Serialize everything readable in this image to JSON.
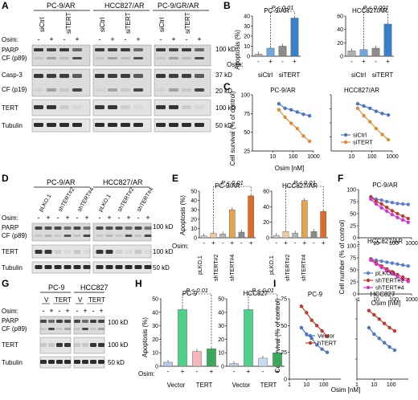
{
  "panel_letters": [
    "A",
    "B",
    "C",
    "D",
    "E",
    "F",
    "G",
    "H",
    "I"
  ],
  "panelA": {
    "cell_lines": [
      "PC-9/AR",
      "HCC827/AR",
      "PC-9/GR/AR"
    ],
    "osim_label": "Osim:",
    "osim_signs": [
      "-",
      "+",
      "-",
      "+",
      "-",
      "+",
      "-",
      "+",
      "-",
      "+",
      "-",
      "+"
    ],
    "treatments": [
      "siCtrl",
      "siTERT",
      "siCtrl",
      "siTERT",
      "siCtrl",
      "siTERT"
    ],
    "row_labels": [
      "PARP",
      "CF (p89)",
      "Casp-3",
      "CF (p19)",
      "TERT",
      "Tubulin"
    ],
    "mw_labels": [
      "100 kD",
      "37 kD",
      "20 kD",
      "100 kD",
      "50 kD"
    ]
  },
  "panelB": {
    "ylabel": "Apoptosis (%)",
    "osim_label": "Osim:",
    "pvalue": "P < 0.01",
    "pvalue2": "P < 0.001",
    "treatments": [
      "siCtrl",
      "siTERT"
    ]
  },
  "panelC": {
    "ylabel": "Cell survival (% of control)",
    "xlabel": "Osim [nM]",
    "legend": [
      "siCtrl",
      "siTERT"
    ]
  },
  "panelD": {
    "cell_lines": [
      "PC-9/AR",
      "HCC827/AR"
    ],
    "osim_label": "Osim:",
    "treatments": [
      "pLKO.1",
      "shTERT#2",
      "shTERT#4",
      "pLKO.1",
      "shTERT#2",
      "shTERT#4"
    ],
    "row_labels": [
      "PARP",
      "CF (p89)",
      "TERT",
      "Tubulin"
    ],
    "mw_labels": [
      "100 kD",
      "100 kD",
      "50 kD"
    ]
  },
  "panelE": {
    "ylabel": "Apoptosis (%)",
    "osim_label": "Osim:",
    "pvalue": "P < 0.01",
    "treatments": [
      "pLKO.1",
      "shTERT#2",
      "shTERT#4"
    ]
  },
  "panelF": {
    "ylabel": "Cell number (% of control)",
    "xlabel": "Osim [nM]",
    "legend": [
      "pLKO.1",
      "shTERT#2",
      "shTERT#4"
    ]
  },
  "panelG": {
    "cell_lines": [
      "PC-9",
      "HCC827"
    ],
    "osim_label": "Osim:",
    "treatments": [
      "V",
      "TERT",
      "V",
      "TERT"
    ],
    "row_labels": [
      "PARP",
      "CF (p89)",
      "TERT",
      "Tubulin"
    ],
    "mw_labels": [
      "100 kD",
      "100 kD",
      "50 kD"
    ]
  },
  "panelH": {
    "ylabel": "Apoptosis (%)",
    "osim_label": "Osim:",
    "pvalue": "P < 0.01",
    "treatments": [
      "Vector",
      "TERT"
    ]
  },
  "panelI": {
    "ylabel": "Cell survival (% of control)",
    "xlabel": "Osim [nM]",
    "legend": [
      "Vector",
      "hTERT"
    ]
  },
  "chart_data": [
    {
      "id": "B-PC9",
      "type": "bar",
      "title": "PC-9/AR",
      "ylabel": "Apoptosis (%)",
      "ylim": [
        0,
        40
      ],
      "yticks": [
        "0",
        "10",
        "20",
        "30",
        "40"
      ],
      "categories": [
        "siCtrl -",
        "siCtrl +",
        "siTERT -",
        "siTERT +"
      ],
      "values": [
        2,
        8,
        10,
        38
      ],
      "colors": [
        "#b0b0b0",
        "#6ea8dc",
        "#8c8c8c",
        "#3a7fc9"
      ]
    },
    {
      "id": "B-HCC827",
      "type": "bar",
      "title": "HCC827/AR",
      "ylabel": "",
      "ylim": [
        0,
        60
      ],
      "yticks": [
        "0",
        "20",
        "40",
        "60"
      ],
      "categories": [
        "siCtrl -",
        "siCtrl +",
        "siTERT -",
        "siTERT +"
      ],
      "values": [
        8,
        10,
        12,
        48
      ],
      "colors": [
        "#b0b0b0",
        "#6ea8dc",
        "#8c8c8c",
        "#3a7fc9"
      ]
    },
    {
      "id": "C-PC9",
      "type": "line",
      "title": "PC-9/AR",
      "xscale": "log",
      "xlim": [
        1,
        1000
      ],
      "ylim": [
        25,
        100
      ],
      "xticks": [
        "10",
        "100",
        "1000"
      ],
      "yticks": [
        "25",
        "50",
        "75",
        "100"
      ],
      "series": [
        {
          "name": "siCtrl",
          "color": "#4a74c4",
          "x": [
            20,
            40,
            80,
            160,
            320,
            640
          ],
          "y": [
            88,
            82,
            80,
            77,
            74,
            72
          ]
        },
        {
          "name": "siTERT",
          "color": "#e08b3a",
          "x": [
            20,
            40,
            80,
            160,
            320,
            640
          ],
          "y": [
            80,
            70,
            62,
            55,
            45,
            38
          ]
        }
      ]
    },
    {
      "id": "C-HCC827",
      "type": "line",
      "title": "HCC827/AR",
      "xscale": "log",
      "xlim": [
        1,
        1000
      ],
      "ylim": [
        25,
        100
      ],
      "xticks": [
        "10",
        "100",
        "1000"
      ],
      "yticks": [],
      "series": [
        {
          "name": "siCtrl",
          "color": "#4a74c4",
          "x": [
            20,
            40,
            80,
            160,
            320,
            640
          ],
          "y": [
            88,
            85,
            82,
            78,
            75,
            73
          ]
        },
        {
          "name": "siTERT",
          "color": "#e08b3a",
          "x": [
            20,
            40,
            80,
            160,
            320,
            640
          ],
          "y": [
            82,
            72,
            64,
            55,
            47,
            40
          ]
        }
      ]
    },
    {
      "id": "E-PC9",
      "type": "bar",
      "title": "PC-9/AR",
      "ylabel": "Apoptosis (%)",
      "ylim": [
        0,
        50
      ],
      "yticks": [
        "0",
        "10",
        "20",
        "30",
        "40",
        "50"
      ],
      "categories": [
        "pLKO.1 -",
        "pLKO.1 +",
        "shTERT#2 -",
        "shTERT#2 +",
        "shTERT#4 -",
        "shTERT#4 +"
      ],
      "values": [
        2,
        5,
        4,
        30,
        6,
        45
      ],
      "colors": [
        "#cfcfcf",
        "#f2c9a0",
        "#b5b5b5",
        "#e8a34d",
        "#8a8a8a",
        "#e06a28"
      ]
    },
    {
      "id": "E-HCC827",
      "type": "bar",
      "title": "HCC827/AR",
      "ylabel": "",
      "ylim": [
        0,
        60
      ],
      "yticks": [
        "0",
        "20",
        "40",
        "60"
      ],
      "categories": [
        "pLKO.1 -",
        "pLKO.1 +",
        "shTERT#2 -",
        "shTERT#2 +",
        "shTERT#4 -",
        "shTERT#4 +"
      ],
      "values": [
        3,
        8,
        6,
        48,
        8,
        34
      ],
      "colors": [
        "#cfcfcf",
        "#f2c9a0",
        "#b5b5b5",
        "#e8a34d",
        "#8a8a8a",
        "#e06a28"
      ]
    },
    {
      "id": "F-PC9",
      "type": "line",
      "title": "PC-9/AR",
      "xscale": "log",
      "xlim": [
        1,
        1000
      ],
      "ylim": [
        0,
        100
      ],
      "xticks": [
        "1",
        "10",
        "100",
        "1000"
      ],
      "yticks": [
        "0",
        "25",
        "50",
        "75",
        "100"
      ],
      "series": [
        {
          "name": "pLKO.1",
          "color": "#5a7fd0",
          "x": [
            5,
            10,
            20,
            40,
            80,
            160,
            320,
            640
          ],
          "y": [
            85,
            80,
            78,
            75,
            73,
            71,
            70,
            69
          ]
        },
        {
          "name": "shTERT#2",
          "color": "#c0392b",
          "x": [
            5,
            10,
            20,
            40,
            80,
            160,
            320,
            640
          ],
          "y": [
            84,
            76,
            70,
            63,
            56,
            50,
            45,
            40
          ]
        },
        {
          "name": "shTERT#4",
          "color": "#d633d6",
          "x": [
            5,
            10,
            20,
            40,
            80,
            160,
            320,
            640
          ],
          "y": [
            80,
            70,
            62,
            55,
            48,
            42,
            37,
            32
          ]
        }
      ]
    },
    {
      "id": "F-HCC827",
      "type": "line",
      "title": "HCC827/AR",
      "xscale": "log",
      "xlim": [
        1,
        1000
      ],
      "ylim": [
        0,
        100
      ],
      "xticks": [
        "1",
        "10",
        "100",
        "1000"
      ],
      "yticks": [
        "0",
        "25",
        "50",
        "75",
        "100"
      ],
      "series": [
        {
          "name": "pLKO.1",
          "color": "#5a7fd0",
          "x": [
            5,
            10,
            20,
            40,
            80,
            160,
            320,
            640
          ],
          "y": [
            73,
            70,
            68,
            66,
            64,
            62,
            60,
            58
          ]
        },
        {
          "name": "shTERT#2",
          "color": "#c0392b",
          "x": [
            5,
            10,
            20,
            40,
            80,
            160,
            320,
            640
          ],
          "y": [
            72,
            65,
            58,
            52,
            46,
            40,
            35,
            30
          ]
        },
        {
          "name": "shTERT#4",
          "color": "#d633d6",
          "x": [
            5,
            10,
            20,
            40,
            80,
            160,
            320,
            640
          ],
          "y": [
            70,
            62,
            55,
            48,
            42,
            36,
            30,
            26
          ]
        }
      ]
    },
    {
      "id": "H-PC9",
      "type": "bar",
      "title": "PC-9",
      "ylabel": "Apoptosis (%)",
      "ylim": [
        0,
        50
      ],
      "yticks": [
        "0",
        "10",
        "20",
        "30",
        "40",
        "50"
      ],
      "categories": [
        "Vector -",
        "Vector +",
        "TERT -",
        "TERT +"
      ],
      "values": [
        3,
        42,
        11,
        13
      ],
      "colors": [
        "#b8c8e8",
        "#4fd18b",
        "#f4b6b6",
        "#3aa95c"
      ]
    },
    {
      "id": "H-HCC827",
      "type": "bar",
      "title": "HCC827",
      "ylabel": "",
      "ylim": [
        0,
        50
      ],
      "yticks": [
        "0",
        "10",
        "20",
        "30",
        "40",
        "50"
      ],
      "categories": [
        "Vector -",
        "Vector +",
        "TERT -",
        "TERT +"
      ],
      "values": [
        2,
        42,
        6,
        10
      ],
      "colors": [
        "#b8c8e8",
        "#4fd18b",
        "#c9dbf2",
        "#3aa95c"
      ]
    },
    {
      "id": "I-PC9",
      "type": "line",
      "title": "PC-9",
      "xscale": "log",
      "xlim": [
        1,
        1000
      ],
      "ylim": [
        0,
        75
      ],
      "xticks": [
        "1",
        "10",
        "100"
      ],
      "yticks": [
        "0",
        "25",
        "50",
        "75"
      ],
      "series": [
        {
          "name": "Vector",
          "color": "#4a74c4",
          "x": [
            5,
            10,
            20,
            40,
            80,
            160
          ],
          "y": [
            48,
            42,
            38,
            32,
            28,
            25
          ]
        },
        {
          "name": "hTERT",
          "color": "#c0392b",
          "x": [
            5,
            10,
            20,
            40,
            80,
            160
          ],
          "y": [
            68,
            62,
            55,
            50,
            45,
            40
          ]
        }
      ]
    },
    {
      "id": "I-HCC827",
      "type": "line",
      "title": "HCC827",
      "xscale": "log",
      "xlim": [
        1,
        1000
      ],
      "ylim": [
        0,
        75
      ],
      "xticks": [
        "1",
        "10",
        "100"
      ],
      "yticks": [],
      "series": [
        {
          "name": "Vector",
          "color": "#4a74c4",
          "x": [
            5,
            10,
            20,
            40,
            80,
            160
          ],
          "y": [
            48,
            42,
            38,
            34,
            30,
            27
          ]
        },
        {
          "name": "hTERT",
          "color": "#c0392b",
          "x": [
            5,
            10,
            20,
            40,
            80,
            160
          ],
          "y": [
            64,
            60,
            56,
            52,
            48,
            45
          ]
        }
      ]
    }
  ]
}
